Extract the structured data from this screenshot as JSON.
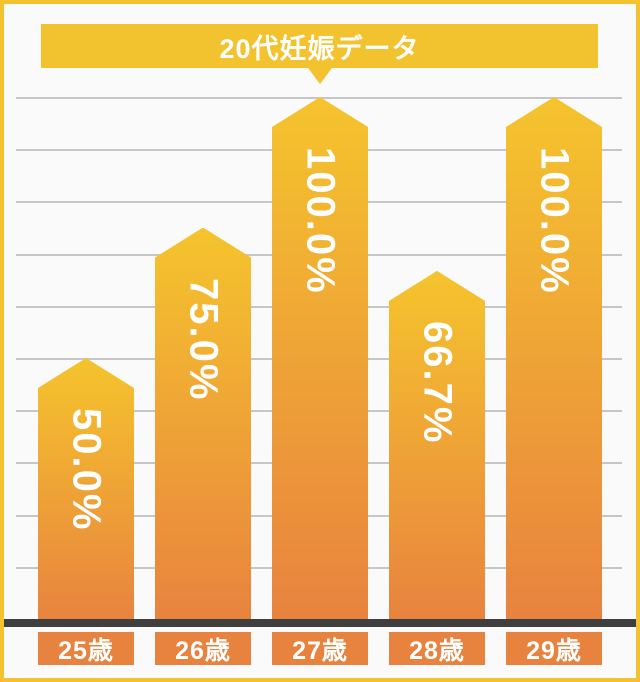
{
  "title": "20代妊娠データ",
  "chart_data": {
    "type": "bar",
    "title": "20代妊娠データ",
    "categories": [
      "25歳",
      "26歳",
      "27歳",
      "28歳",
      "29歳"
    ],
    "values": [
      50.0,
      75.0,
      100.0,
      66.7,
      100.0
    ],
    "value_labels": [
      "50.0%",
      "75.0%",
      "100.0%",
      "66.7%",
      "100.0%"
    ],
    "xlabel": "",
    "ylabel": "",
    "ylim": [
      0,
      100
    ],
    "gridline_step_percent": 10,
    "grid": true,
    "legend": false
  },
  "colors": {
    "accent_yellow": "#F2C32F",
    "bar_gradient_top": "#F5C42D",
    "bar_gradient_bottom": "#E8823F",
    "label_box_orange": "#E8823F",
    "baseline_dark": "#3F3F3F",
    "gridline_gray": "#C6C6C6",
    "background": "#FAFAFA",
    "text_white": "#FFFFFF"
  }
}
